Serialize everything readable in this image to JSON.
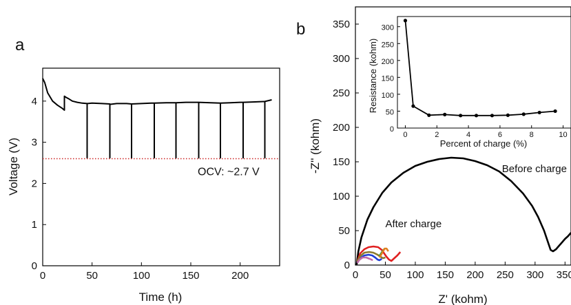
{
  "chart_data": [
    {
      "type": "line",
      "panel_label": "a",
      "xlabel": "Time (h)",
      "ylabel": "Voltage (V)",
      "xlim": [
        0,
        240
      ],
      "ylim": [
        0,
        4.8
      ],
      "xticks": [
        0,
        50,
        100,
        150,
        200
      ],
      "yticks": [
        0,
        1,
        2,
        3,
        4
      ],
      "grid": false,
      "series": [
        {
          "color": "#000000",
          "x": [
            0,
            2,
            5,
            10,
            15,
            20,
            22,
            22,
            23,
            26,
            30,
            35,
            40,
            45,
            45,
            45,
            50,
            60,
            68,
            68,
            68,
            75,
            85,
            90,
            90,
            90,
            100,
            110,
            113,
            113,
            113,
            125,
            135,
            135,
            135,
            145,
            155,
            158,
            158,
            158,
            170,
            180,
            180,
            180,
            190,
            200,
            203,
            203,
            203,
            215,
            225,
            225,
            225,
            232
          ],
          "y": [
            4.55,
            4.45,
            4.2,
            4.0,
            3.9,
            3.82,
            3.78,
            4.12,
            4.1,
            4.06,
            4.0,
            3.97,
            3.95,
            3.94,
            2.62,
            3.94,
            3.95,
            3.94,
            3.93,
            2.62,
            3.92,
            3.94,
            3.94,
            3.93,
            2.62,
            3.93,
            3.94,
            3.95,
            3.95,
            2.62,
            3.95,
            3.96,
            3.96,
            2.62,
            3.96,
            3.97,
            3.97,
            3.97,
            2.62,
            3.97,
            3.96,
            3.95,
            2.62,
            3.95,
            3.96,
            3.97,
            3.97,
            2.62,
            3.97,
            3.98,
            3.99,
            2.62,
            3.99,
            4.03
          ]
        },
        {
          "name": "OCV: ~2.7 V",
          "color": "#cc2222",
          "style": "dotted",
          "x": [
            0,
            240
          ],
          "y": [
            2.6,
            2.6
          ]
        }
      ],
      "annotations": [
        {
          "text": "OCV: ~2.7 V",
          "x": 157,
          "y": 2.2,
          "color": "#dd3333"
        }
      ]
    },
    {
      "type": "line",
      "panel_label": "b",
      "xlabel": "Z' (kohm)",
      "ylabel": "-Z'' (kohm)",
      "xlim": [
        0,
        360
      ],
      "ylim": [
        0,
        375
      ],
      "xticks": [
        0,
        50,
        100,
        150,
        200,
        250,
        300,
        350
      ],
      "yticks": [
        0,
        50,
        100,
        150,
        200,
        250,
        300,
        350
      ],
      "grid": false,
      "series": [
        {
          "name": "Before charge",
          "color": "#000000",
          "x": [
            2,
            5,
            10,
            20,
            30,
            45,
            60,
            80,
            100,
            120,
            140,
            160,
            180,
            200,
            220,
            240,
            260,
            280,
            295,
            305,
            315,
            322,
            326,
            330,
            335,
            340,
            345,
            350,
            355,
            360
          ],
          "y": [
            0,
            20,
            40,
            66,
            84,
            105,
            120,
            134,
            144,
            150,
            154,
            156,
            155,
            151,
            145,
            136,
            122,
            104,
            86,
            70,
            50,
            32,
            22,
            20,
            23,
            28,
            33,
            38,
            42,
            47
          ]
        },
        {
          "name": "After charge",
          "color": "#e02020",
          "x": [
            3,
            8,
            15,
            22,
            30,
            38,
            44,
            48,
            52,
            56,
            60,
            65,
            70,
            75
          ],
          "y": [
            5,
            17,
            23,
            26,
            27,
            26,
            22,
            17,
            12,
            8,
            6,
            10,
            14,
            19
          ]
        },
        {
          "color": "#1f3fd6",
          "x": [
            3,
            8,
            15,
            22,
            28,
            33,
            37,
            40,
            44
          ],
          "y": [
            4,
            10,
            14,
            15,
            14,
            11,
            8,
            7,
            9
          ]
        },
        {
          "color": "#8b7a2e",
          "x": [
            3,
            8,
            15,
            23,
            30,
            37,
            42,
            46,
            50
          ],
          "y": [
            5,
            13,
            18,
            19,
            18,
            15,
            12,
            10,
            11
          ]
        },
        {
          "color": "#c06aa8",
          "x": [
            3,
            7,
            12,
            18,
            24,
            29
          ],
          "y": [
            3,
            8,
            11,
            11,
            9,
            7
          ]
        },
        {
          "color": "#20a040",
          "x": [
            40,
            43,
            46,
            49
          ],
          "y": [
            13,
            17,
            21,
            24
          ]
        },
        {
          "color": "#e08020",
          "x": [
            40,
            43,
            46,
            49,
            52,
            55
          ],
          "y": [
            11,
            15,
            20,
            24,
            24,
            20
          ]
        }
      ],
      "annotations": [
        {
          "text": "Before charge",
          "x": 270,
          "y": 135
        },
        {
          "text": "After charge",
          "x": 50,
          "y": 55
        }
      ],
      "inset": {
        "type": "line",
        "xlabel": "Percent of charge (%)",
        "ylabel": "Resistance (kohm)",
        "xlim": [
          -0.5,
          10.5
        ],
        "ylim": [
          0,
          330
        ],
        "xticks": [
          0,
          2,
          4,
          6,
          8,
          10
        ],
        "yticks": [
          0,
          50,
          100,
          150,
          200,
          250,
          300
        ],
        "series": [
          {
            "color": "#000000",
            "marker": "circle",
            "x": [
              0,
              0.5,
              1.5,
              2.5,
              3.5,
              4.5,
              5.5,
              6.5,
              7.5,
              8.5,
              9.5
            ],
            "y": [
              318,
              65,
              38,
              40,
              37,
              37,
              37,
              38,
              41,
              46,
              50
            ]
          }
        ]
      }
    }
  ]
}
